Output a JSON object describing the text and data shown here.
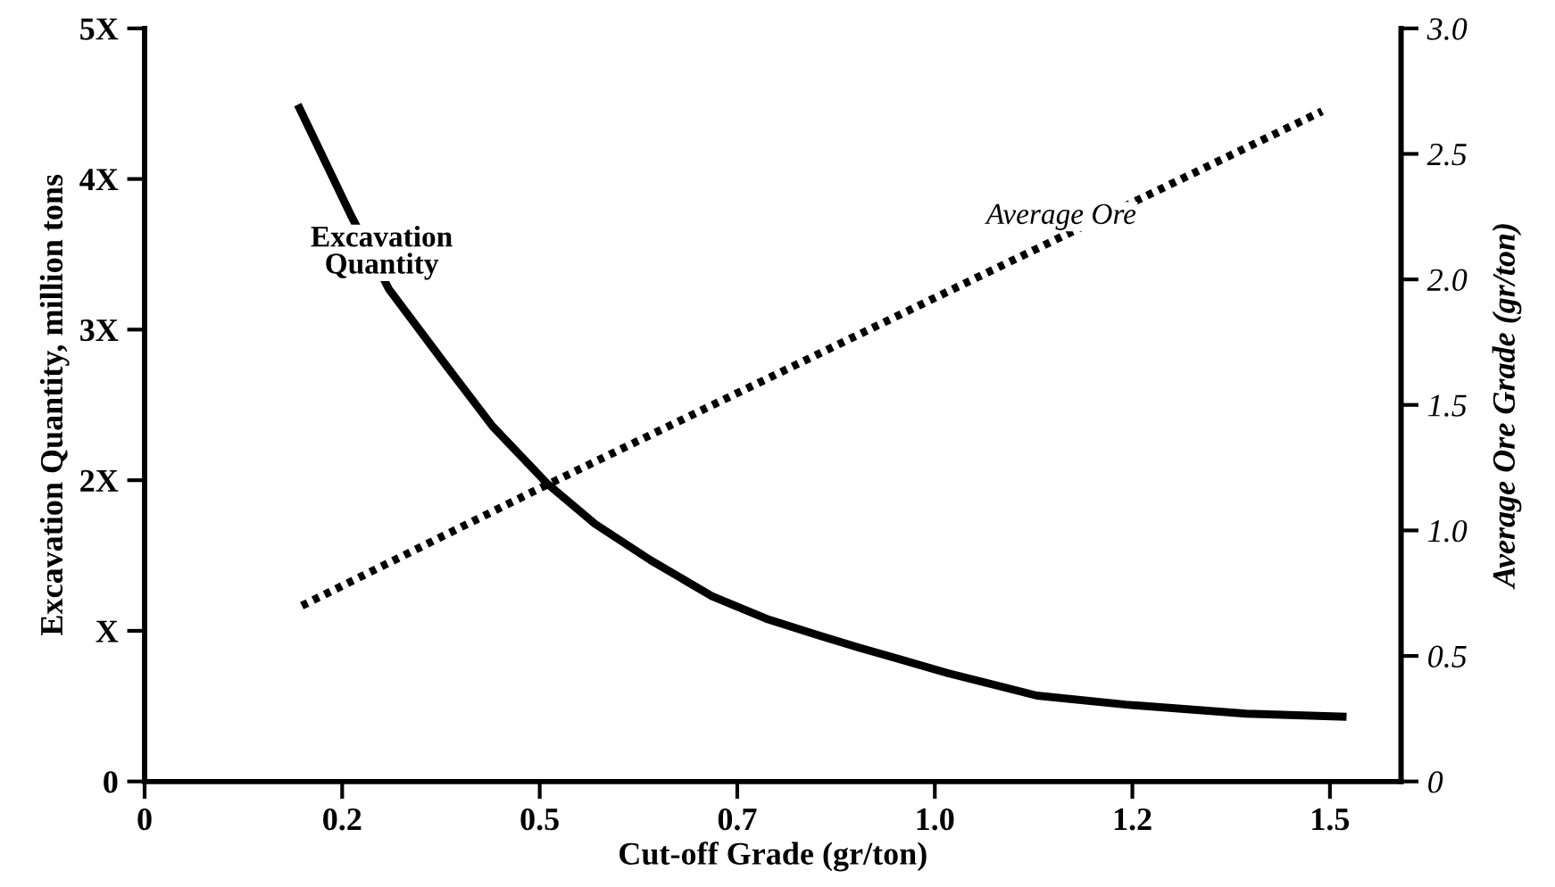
{
  "chart_data": {
    "type": "line",
    "xlabel": "Cut-off Grade (gr/ton)",
    "ylabel": "Excavation Quantity, million tons",
    "y2label": "Average Ore Grade (gr/ton)",
    "xlim": [
      0,
      1.59
    ],
    "xticks": [
      0,
      {
        "value": 0.25,
        "label": "0.2"
      },
      0.5,
      {
        "value": 0.75,
        "label": "0.7"
      },
      {
        "value": 1,
        "label": "1.0"
      },
      {
        "value": 1.25,
        "label": "1.2"
      },
      1.5
    ],
    "ylim": [
      0,
      5
    ],
    "yticks": [
      0,
      {
        "value": 1,
        "label": "X"
      },
      {
        "value": 2,
        "label": "2X"
      },
      {
        "value": 3,
        "label": "3X"
      },
      {
        "value": 4,
        "label": "4X"
      },
      {
        "value": 5,
        "label": "5X"
      }
    ],
    "y2lim": [
      0,
      3
    ],
    "y2ticks": [
      0,
      0.5,
      {
        "value": 1,
        "label": "1.0"
      },
      1.5,
      {
        "value": 2,
        "label": "2.0"
      },
      2.5,
      {
        "value": 3,
        "label": "3.0"
      }
    ],
    "grid": false,
    "legend": false,
    "marker": "none",
    "series": [
      {
        "name": "Excavation Quantity",
        "color": "#000000",
        "line_style": "solid",
        "x": [
          0.196,
          0.261,
          0.309,
          0.379,
          0.44,
          0.509,
          0.57,
          0.64,
          0.718,
          0.787,
          0.853,
          0.903,
          1.016,
          1.129,
          1.242,
          1.394,
          1.516
        ],
        "values": [
          4.47,
          3.76,
          3.27,
          2.78,
          2.36,
          1.98,
          1.71,
          1.47,
          1.23,
          1.08,
          0.97,
          0.89,
          0.72,
          0.57,
          0.51,
          0.45,
          0.43
        ]
      },
      {
        "name": "Average Ore",
        "color": "#000000",
        "line_style": "dotted",
        "axis": "y2",
        "x": [
          0.199,
          0.495,
          1.49
        ],
        "values": [
          0.7,
          1.16,
          2.67
        ]
      }
    ]
  }
}
